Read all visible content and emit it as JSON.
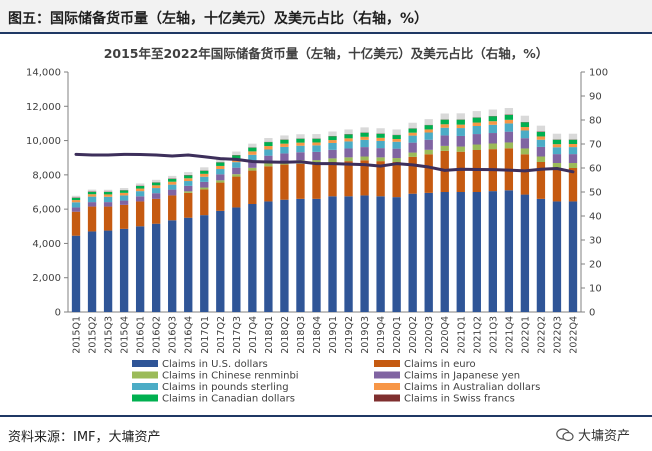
{
  "header": {
    "figure_title": "图五：国际储备货币量（左轴，十亿美元）及美元占比（右轴，%）"
  },
  "footer": {
    "source": "资料来源：IMF，大墉资产",
    "watermark": "大墉资产"
  },
  "colors": {
    "usd": "#2f5597",
    "eur": "#c55a11",
    "cny": "#9bbb59",
    "jpy": "#8064a2",
    "gbp": "#4bacc6",
    "aud": "#f79646",
    "cad": "#00b050",
    "chf": "#7f2f2f",
    "share_line": "#3d2f5b"
  },
  "chart_data": {
    "type": "bar",
    "stacked": true,
    "title": "2015年至2022年国际储备货币量（左轴，十亿美元）及美元占比（右轴，%）",
    "categories": [
      "2015Q1",
      "2015Q2",
      "2015Q3",
      "2015Q4",
      "2016Q1",
      "2016Q2",
      "2016Q3",
      "2016Q4",
      "2017Q1",
      "2017Q2",
      "2017Q3",
      "2017Q4",
      "2018Q1",
      "2018Q2",
      "2018Q3",
      "2018Q4",
      "2019Q1",
      "2019Q2",
      "2019Q3",
      "2019Q4",
      "2020Q1",
      "2020Q2",
      "2020Q3",
      "2020Q4",
      "2021Q1",
      "2021Q2",
      "2021Q3",
      "2021Q4",
      "2022Q1",
      "2022Q2",
      "2022Q3",
      "2022Q4"
    ],
    "y_left": {
      "min": 0,
      "max": 14000,
      "ticks": [
        "0",
        "2,000",
        "4,000",
        "6,000",
        "8,000",
        "10,000",
        "12,000",
        "14,000"
      ]
    },
    "y_right": {
      "min": 0,
      "max": 100,
      "ticks": [
        "0",
        "10",
        "20",
        "30",
        "40",
        "50",
        "60",
        "70",
        "80",
        "90",
        "100"
      ]
    },
    "series": [
      {
        "key": "usd",
        "name": "Claims in U.S. dollars",
        "values": [
          4450,
          4700,
          4750,
          4850,
          5000,
          5150,
          5350,
          5500,
          5650,
          5900,
          6100,
          6300,
          6450,
          6550,
          6600,
          6600,
          6750,
          6750,
          6800,
          6750,
          6700,
          6900,
          6950,
          7000,
          7000,
          7000,
          7050,
          7100,
          6850,
          6600,
          6450,
          6450
        ]
      },
      {
        "key": "eur",
        "name": "Claims in euro",
        "values": [
          1400,
          1450,
          1400,
          1400,
          1450,
          1450,
          1450,
          1450,
          1500,
          1650,
          1800,
          1950,
          2050,
          2050,
          2050,
          2050,
          2000,
          2050,
          2050,
          2050,
          2050,
          2150,
          2250,
          2400,
          2350,
          2450,
          2450,
          2450,
          2350,
          2150,
          1950,
          1950
        ]
      },
      {
        "key": "cny",
        "name": "Claims in Chinese renminbi",
        "values": [
          0,
          0,
          0,
          0,
          0,
          0,
          0,
          90,
          110,
          130,
          140,
          160,
          180,
          200,
          210,
          210,
          210,
          220,
          220,
          220,
          230,
          250,
          260,
          290,
          300,
          320,
          330,
          340,
          340,
          320,
          290,
          290
        ]
      },
      {
        "key": "jpy",
        "name": "Claims in Japanese yen",
        "values": [
          250,
          260,
          260,
          250,
          300,
          330,
          340,
          320,
          330,
          350,
          380,
          420,
          440,
          450,
          460,
          480,
          500,
          520,
          550,
          540,
          550,
          580,
          590,
          610,
          620,
          610,
          610,
          630,
          600,
          560,
          520,
          520
        ]
      },
      {
        "key": "gbp",
        "name": "Claims in pounds sterling",
        "values": [
          300,
          320,
          310,
          300,
          300,
          300,
          290,
          280,
          300,
          310,
          320,
          340,
          360,
          380,
          380,
          380,
          400,
          410,
          420,
          420,
          400,
          410,
          420,
          450,
          460,
          470,
          480,
          480,
          450,
          420,
          400,
          410
        ]
      },
      {
        "key": "aud",
        "name": "Claims in Australian dollars",
        "values": [
          130,
          140,
          140,
          150,
          150,
          160,
          170,
          160,
          170,
          180,
          190,
          200,
          200,
          190,
          180,
          170,
          170,
          180,
          180,
          180,
          160,
          170,
          180,
          200,
          200,
          200,
          210,
          210,
          200,
          190,
          180,
          180
        ]
      },
      {
        "key": "cad",
        "name": "Claims in Canadian dollars",
        "values": [
          130,
          140,
          140,
          140,
          150,
          160,
          170,
          170,
          180,
          200,
          210,
          220,
          230,
          230,
          230,
          220,
          220,
          230,
          240,
          240,
          230,
          240,
          250,
          270,
          290,
          290,
          290,
          290,
          280,
          270,
          260,
          250
        ]
      },
      {
        "key": "chf",
        "name": "Claims in Swiss francs",
        "values": [
          20,
          20,
          20,
          20,
          20,
          20,
          20,
          20,
          20,
          20,
          20,
          20,
          20,
          20,
          20,
          20,
          20,
          20,
          20,
          20,
          20,
          20,
          20,
          20,
          20,
          20,
          20,
          20,
          20,
          20,
          20,
          20
        ]
      },
      {
        "key": "other",
        "name": "",
        "values": [
          100,
          110,
          110,
          120,
          130,
          140,
          150,
          170,
          180,
          190,
          200,
          210,
          220,
          230,
          240,
          250,
          260,
          270,
          290,
          300,
          310,
          320,
          330,
          340,
          350,
          360,
          370,
          380,
          360,
          340,
          330,
          330
        ]
      }
    ],
    "line": {
      "name": "USD share (%)",
      "values": [
        65.7,
        65.4,
        65.4,
        65.7,
        65.6,
        65.4,
        65.0,
        65.4,
        64.7,
        63.9,
        63.6,
        62.7,
        62.5,
        62.4,
        62.6,
        61.8,
        61.8,
        61.6,
        61.4,
        60.8,
        61.8,
        61.3,
        60.4,
        59.0,
        59.5,
        59.4,
        59.3,
        59.1,
        58.8,
        59.5,
        59.8,
        58.4
      ]
    },
    "legend": [
      {
        "key": "usd",
        "label": "Claims in U.S. dollars"
      },
      {
        "key": "eur",
        "label": "Claims in euro"
      },
      {
        "key": "cny",
        "label": "Claims in Chinese renminbi"
      },
      {
        "key": "jpy",
        "label": "Claims in Japanese yen"
      },
      {
        "key": "gbp",
        "label": "Claims in pounds sterling"
      },
      {
        "key": "aud",
        "label": "Claims in Australian dollars"
      },
      {
        "key": "cad",
        "label": "Claims in Canadian dollars"
      },
      {
        "key": "chf",
        "label": "Claims in Swiss francs"
      }
    ],
    "legend_position": "bottom",
    "grid": false
  }
}
